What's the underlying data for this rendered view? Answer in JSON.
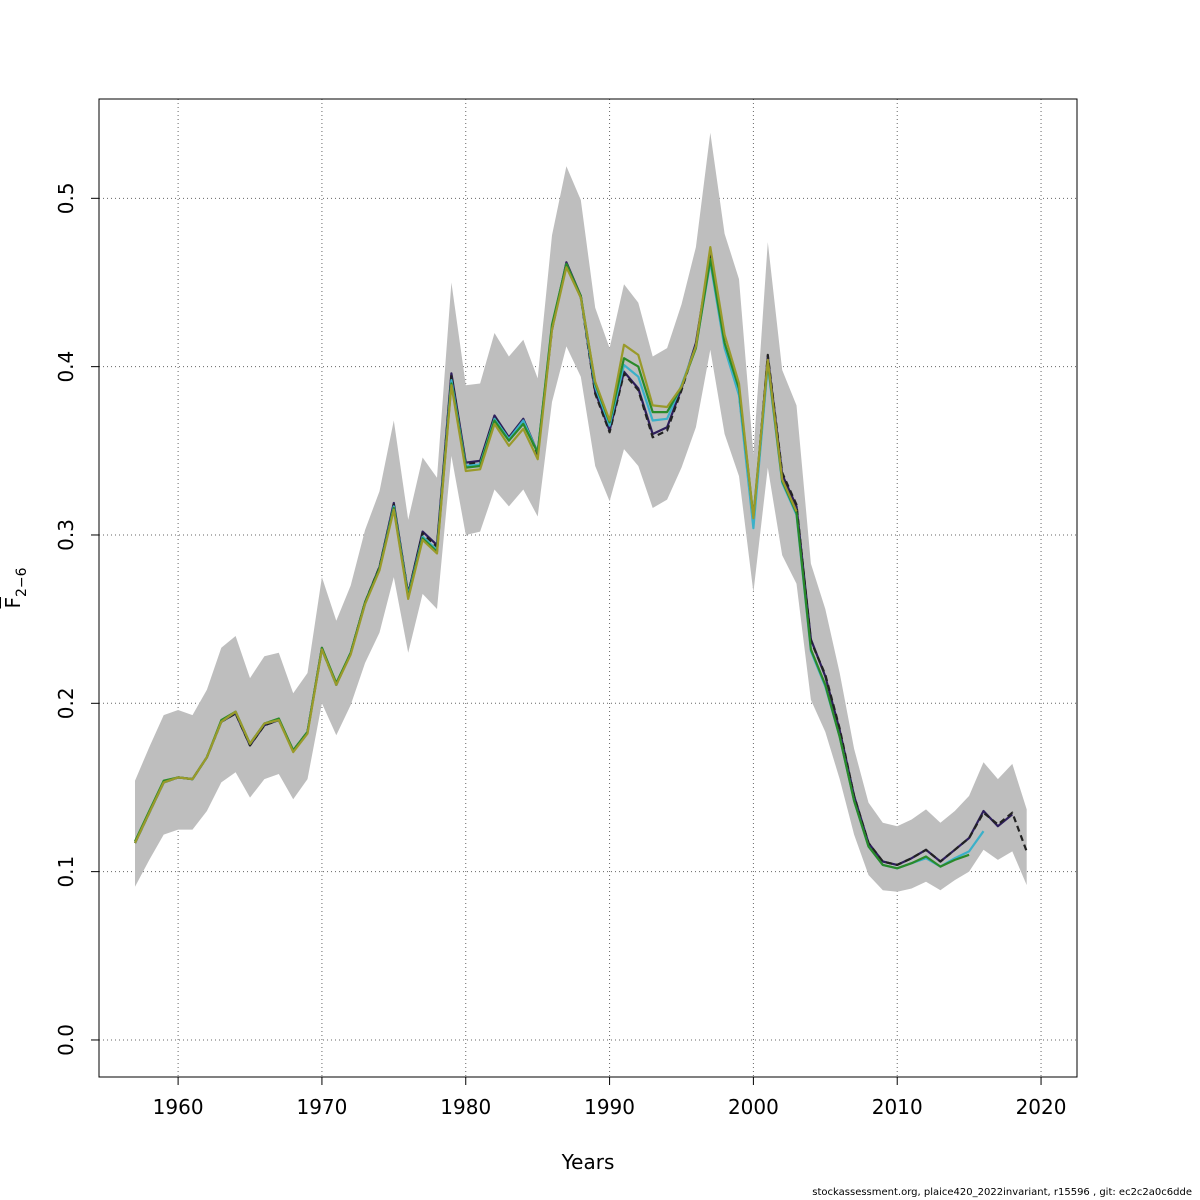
{
  "chart_data": {
    "type": "line",
    "xlabel": "Years",
    "ylabel": "F",
    "ylabel_subscript": "2−6",
    "xlim": [
      1954.5,
      2022.5
    ],
    "ylim": [
      -0.022,
      0.559
    ],
    "x_ticks": [
      1960,
      1970,
      1980,
      1990,
      2000,
      2010,
      2020
    ],
    "y_ticks": [
      0.0,
      0.1,
      0.2,
      0.3,
      0.4,
      0.5
    ],
    "y_tick_labels": [
      "0.0",
      "0.1",
      "0.2",
      "0.3",
      "0.4",
      "0.5"
    ],
    "grid": true,
    "band": {
      "color": "#bebebe",
      "x": [
        1957,
        1958,
        1959,
        1960,
        1961,
        1962,
        1963,
        1964,
        1965,
        1966,
        1967,
        1968,
        1969,
        1970,
        1971,
        1972,
        1973,
        1974,
        1975,
        1976,
        1977,
        1978,
        1979,
        1980,
        1981,
        1982,
        1983,
        1984,
        1985,
        1986,
        1987,
        1988,
        1989,
        1990,
        1991,
        1992,
        1993,
        1994,
        1995,
        1996,
        1997,
        1998,
        1999,
        2000,
        2001,
        2002,
        2003,
        2004,
        2005,
        2006,
        2007,
        2008,
        2009,
        2010,
        2011,
        2012,
        2013,
        2014,
        2015,
        2016,
        2017,
        2018,
        2019
      ],
      "upper": [
        0.154,
        0.174,
        0.193,
        0.196,
        0.193,
        0.208,
        0.233,
        0.24,
        0.215,
        0.228,
        0.23,
        0.206,
        0.218,
        0.275,
        0.249,
        0.27,
        0.303,
        0.326,
        0.368,
        0.309,
        0.346,
        0.334,
        0.45,
        0.389,
        0.39,
        0.42,
        0.406,
        0.416,
        0.393,
        0.478,
        0.519,
        0.499,
        0.435,
        0.411,
        0.449,
        0.438,
        0.406,
        0.411,
        0.437,
        0.471,
        0.539,
        0.479,
        0.452,
        0.348,
        0.474,
        0.398,
        0.377,
        0.283,
        0.256,
        0.218,
        0.173,
        0.141,
        0.129,
        0.127,
        0.131,
        0.137,
        0.129,
        0.136,
        0.145,
        0.165,
        0.155,
        0.164,
        0.137
      ],
      "lower": [
        0.091,
        0.107,
        0.122,
        0.125,
        0.125,
        0.136,
        0.153,
        0.159,
        0.144,
        0.155,
        0.158,
        0.143,
        0.155,
        0.2,
        0.181,
        0.199,
        0.224,
        0.242,
        0.275,
        0.23,
        0.265,
        0.256,
        0.347,
        0.3,
        0.302,
        0.327,
        0.317,
        0.327,
        0.311,
        0.379,
        0.412,
        0.394,
        0.341,
        0.32,
        0.351,
        0.341,
        0.316,
        0.321,
        0.34,
        0.364,
        0.41,
        0.36,
        0.335,
        0.266,
        0.34,
        0.288,
        0.271,
        0.202,
        0.183,
        0.155,
        0.122,
        0.098,
        0.089,
        0.088,
        0.09,
        0.094,
        0.089,
        0.095,
        0.1,
        0.113,
        0.107,
        0.112,
        0.092
      ]
    },
    "series": [
      {
        "color": "#2e1e5c",
        "dashed": false,
        "x_start": 1957,
        "values": [
          0.117,
          0.135,
          0.153,
          0.156,
          0.155,
          0.168,
          0.189,
          0.194,
          0.175,
          0.187,
          0.19,
          0.172,
          0.183,
          0.233,
          0.211,
          0.23,
          0.26,
          0.281,
          0.319,
          0.265,
          0.302,
          0.294,
          0.396,
          0.343,
          0.344,
          0.371,
          0.358,
          0.369,
          0.349,
          0.423,
          0.462,
          0.442,
          0.385,
          0.362,
          0.397,
          0.387,
          0.36,
          0.364,
          0.387,
          0.414,
          0.467,
          0.413,
          0.385,
          0.307,
          0.406,
          0.336,
          0.317,
          0.238,
          0.216,
          0.184,
          0.145,
          0.117,
          0.106,
          0.104,
          0.108,
          0.113,
          0.106,
          0.113,
          0.12,
          0.136,
          0.127,
          0.134
        ]
      },
      {
        "color": "#222222",
        "dashed": true,
        "x_start": 1957,
        "values": [
          0.117,
          0.135,
          0.153,
          0.156,
          0.155,
          0.168,
          0.189,
          0.194,
          0.175,
          0.187,
          0.19,
          0.172,
          0.183,
          0.232,
          0.211,
          0.23,
          0.26,
          0.281,
          0.318,
          0.265,
          0.301,
          0.293,
          0.395,
          0.342,
          0.343,
          0.37,
          0.357,
          0.368,
          0.348,
          0.422,
          0.461,
          0.441,
          0.384,
          0.361,
          0.396,
          0.386,
          0.358,
          0.362,
          0.386,
          0.413,
          0.466,
          0.413,
          0.384,
          0.307,
          0.407,
          0.337,
          0.318,
          0.237,
          0.217,
          0.185,
          0.145,
          0.117,
          0.106,
          0.104,
          0.108,
          0.113,
          0.106,
          0.113,
          0.12,
          0.135,
          0.128,
          0.135,
          0.112
        ]
      },
      {
        "color": "#3bb0c9",
        "dashed": false,
        "x_start": 1957,
        "values": [
          0.117,
          0.135,
          0.153,
          0.156,
          0.155,
          0.168,
          0.189,
          0.195,
          0.176,
          0.188,
          0.19,
          0.172,
          0.183,
          0.232,
          0.211,
          0.23,
          0.259,
          0.28,
          0.317,
          0.264,
          0.299,
          0.291,
          0.392,
          0.341,
          0.342,
          0.369,
          0.357,
          0.368,
          0.349,
          0.424,
          0.461,
          0.441,
          0.388,
          0.365,
          0.401,
          0.394,
          0.368,
          0.369,
          0.389,
          0.412,
          0.462,
          0.411,
          0.383,
          0.304,
          0.401,
          0.331,
          0.312,
          0.231,
          0.21,
          0.18,
          0.142,
          0.115,
          0.104,
          0.102,
          0.105,
          0.108,
          0.103,
          0.108,
          0.112,
          0.124
        ]
      },
      {
        "color": "#2a8a2a",
        "dashed": false,
        "x_start": 1957,
        "values": [
          0.118,
          0.136,
          0.154,
          0.156,
          0.155,
          0.168,
          0.19,
          0.195,
          0.176,
          0.188,
          0.191,
          0.172,
          0.183,
          0.233,
          0.212,
          0.23,
          0.26,
          0.28,
          0.316,
          0.263,
          0.298,
          0.29,
          0.39,
          0.34,
          0.341,
          0.368,
          0.356,
          0.366,
          0.349,
          0.425,
          0.461,
          0.442,
          0.39,
          0.367,
          0.405,
          0.4,
          0.373,
          0.373,
          0.388,
          0.411,
          0.464,
          0.414,
          0.387,
          0.311,
          0.403,
          0.332,
          0.313,
          0.232,
          0.211,
          0.18,
          0.142,
          0.115,
          0.104,
          0.102,
          0.105,
          0.109,
          0.103,
          0.107,
          0.11
        ]
      },
      {
        "color": "#9a9a2a",
        "dashed": false,
        "x_start": 1957,
        "values": [
          0.117,
          0.135,
          0.153,
          0.156,
          0.155,
          0.168,
          0.189,
          0.195,
          0.176,
          0.188,
          0.19,
          0.171,
          0.182,
          0.232,
          0.211,
          0.229,
          0.259,
          0.279,
          0.315,
          0.262,
          0.297,
          0.289,
          0.389,
          0.338,
          0.339,
          0.366,
          0.353,
          0.363,
          0.345,
          0.422,
          0.459,
          0.441,
          0.391,
          0.368,
          0.413,
          0.407,
          0.377,
          0.376,
          0.388,
          0.412,
          0.471,
          0.419,
          0.39,
          0.31,
          0.404,
          0.333,
          0.314
        ]
      }
    ]
  },
  "footer": {
    "note": "stockassessment.org, plaice420_2022invariant, r15596 , git: ec2c2a0c6dde"
  }
}
